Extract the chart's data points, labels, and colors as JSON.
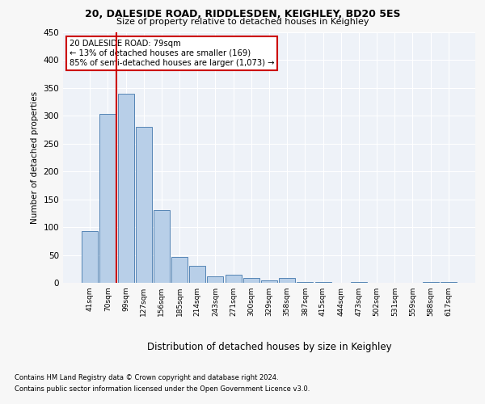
{
  "title_line1": "20, DALESIDE ROAD, RIDDLESDEN, KEIGHLEY, BD20 5ES",
  "title_line2": "Size of property relative to detached houses in Keighley",
  "xlabel": "Distribution of detached houses by size in Keighley",
  "ylabel": "Number of detached properties",
  "categories": [
    "41sqm",
    "70sqm",
    "99sqm",
    "127sqm",
    "156sqm",
    "185sqm",
    "214sqm",
    "243sqm",
    "271sqm",
    "300sqm",
    "329sqm",
    "358sqm",
    "387sqm",
    "415sqm",
    "444sqm",
    "473sqm",
    "502sqm",
    "531sqm",
    "559sqm",
    "588sqm",
    "617sqm"
  ],
  "values": [
    93,
    303,
    340,
    280,
    130,
    47,
    30,
    11,
    14,
    9,
    5,
    9,
    2,
    1,
    0,
    1,
    0,
    0,
    0,
    2,
    1
  ],
  "bar_color": "#b8cfe8",
  "bar_edge_color": "#5585b5",
  "vline_color": "#cc0000",
  "vline_pos": 1.5,
  "annotation_line1": "20 DALESIDE ROAD: 79sqm",
  "annotation_line2": "← 13% of detached houses are smaller (169)",
  "annotation_line3": "85% of semi-detached houses are larger (1,073) →",
  "annotation_box_edgecolor": "#cc0000",
  "ylim": [
    0,
    450
  ],
  "yticks": [
    0,
    50,
    100,
    150,
    200,
    250,
    300,
    350,
    400,
    450
  ],
  "footer_line1": "Contains HM Land Registry data © Crown copyright and database right 2024.",
  "footer_line2": "Contains public sector information licensed under the Open Government Licence v3.0.",
  "bg_color": "#eef2f8",
  "grid_color": "#ffffff",
  "fig_bg": "#f7f7f7"
}
